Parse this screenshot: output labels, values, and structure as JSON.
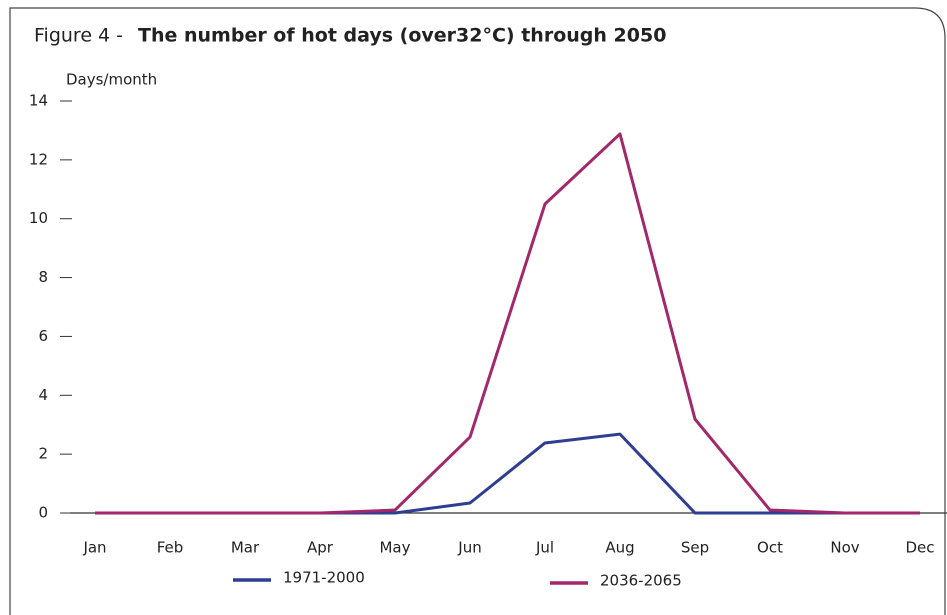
{
  "chart_data": {
    "type": "line",
    "figure_label": "Figure 4 -",
    "title": "The number of hot days (over32°C) through 2050",
    "y_label": "Days/month",
    "categories": [
      "Jan",
      "Feb",
      "Mar",
      "Apr",
      "May",
      "Jun",
      "Jul",
      "Aug",
      "Sep",
      "Oct",
      "Nov",
      "Dec"
    ],
    "series": [
      {
        "name": "1971-2000",
        "color": "#2f3e91",
        "values": [
          0,
          0,
          0,
          0,
          0,
          0.34,
          2.38,
          2.68,
          0,
          0,
          0,
          0
        ]
      },
      {
        "name": "2036-2065",
        "color": "#a3286b",
        "values": [
          0,
          0,
          0,
          0,
          0.1,
          2.58,
          10.5,
          12.88,
          3.19,
          0.1,
          0,
          0
        ]
      }
    ],
    "ylim": [
      0,
      14
    ],
    "yticks": [
      0,
      2,
      4,
      6,
      8,
      10,
      12,
      14
    ]
  }
}
